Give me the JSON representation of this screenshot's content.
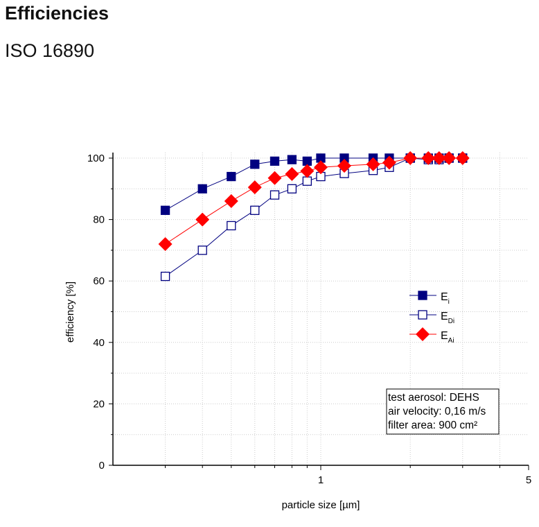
{
  "header": {
    "title": "Efficiencies",
    "subtitle": "ISO 16890"
  },
  "chart_data": {
    "type": "line",
    "xscale": "log",
    "xlabel": "particle size [µm]",
    "ylabel": "efficiency [%]",
    "xlim": [
      0.2,
      5
    ],
    "ylim": [
      0,
      100
    ],
    "xticks": [
      1,
      5
    ],
    "xtick_labels": [
      "1",
      "5"
    ],
    "yticks": [
      0,
      20,
      40,
      60,
      80,
      100
    ],
    "ytick_labels": [
      "0",
      "20",
      "40",
      "60",
      "80",
      "100"
    ],
    "grid": true,
    "x": [
      0.3,
      0.4,
      0.5,
      0.6,
      0.7,
      0.8,
      0.9,
      1.0,
      1.2,
      1.5,
      1.7,
      2.0,
      2.3,
      2.5,
      2.7,
      3.0
    ],
    "series": [
      {
        "name": "E",
        "sub": "i",
        "marker": "filled-square",
        "color": "#000080",
        "values": [
          83,
          90,
          94,
          98,
          99,
          99.5,
          99,
          100,
          100,
          100,
          100,
          100,
          100,
          100,
          100,
          100
        ]
      },
      {
        "name": "E",
        "sub": "Di",
        "marker": "open-square",
        "color": "#000080",
        "values": [
          61.5,
          70,
          78,
          83,
          88,
          90,
          92.5,
          94,
          95,
          96,
          97,
          100,
          99.5,
          99.5,
          100,
          100
        ]
      },
      {
        "name": "E",
        "sub": "Ai",
        "marker": "diamond",
        "color": "#ff0000",
        "values": [
          72,
          80,
          86,
          90.5,
          93.5,
          94.8,
          95.8,
          97,
          97.5,
          98,
          98.5,
          100,
          100,
          100,
          100,
          100
        ]
      }
    ],
    "legend_position": "center-right",
    "annotation": [
      "test aerosol: DEHS",
      "air velocity: 0,16 m/s",
      "filter area: 900 cm²"
    ]
  }
}
